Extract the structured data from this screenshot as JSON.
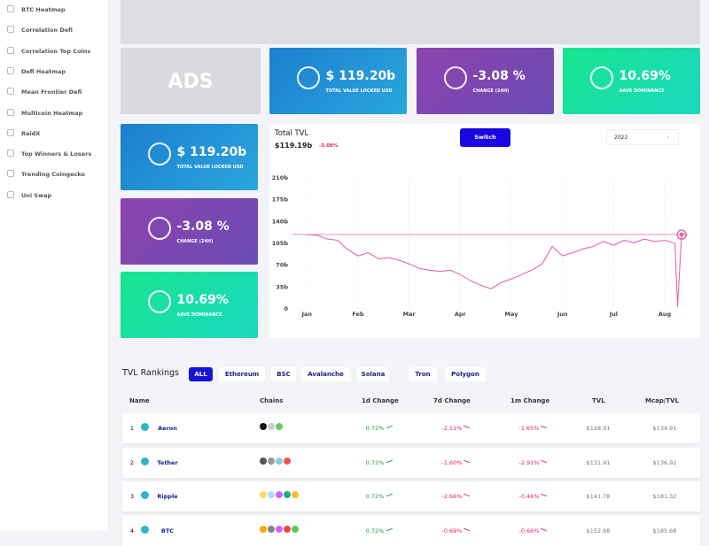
{
  "sidebar": {
    "items": [
      "BTC Heatmap",
      "Correlation Defi",
      "Correlation Top Coins",
      "Defi Heatmap",
      "Mean Frontier Defi",
      "Multicoin Heatmap",
      "RaidX",
      "Top Winners & Losers",
      "Trending Coingecko",
      "Uni Swap"
    ]
  },
  "ads": "ADS",
  "top_cards": [
    {
      "value": "$ 119.20b",
      "label": "TOTAL VALUE LOCKED USD"
    },
    {
      "value": "-3.08 %",
      "label": "CHANGE (24H)"
    },
    {
      "value": "10.69%",
      "label": "AAVE DOMINANCE"
    }
  ],
  "side_cards": [
    {
      "value": "$ 119.20b",
      "label": "TOTAL VALUE LOCKED USD"
    },
    {
      "value": "-3.08 %",
      "label": "CHANGE (24H)"
    },
    {
      "value": "10.69%",
      "label": "AAVE DOMINANCE"
    }
  ],
  "chart_panel": {
    "title": "Total TVL",
    "amount": "$119.19b",
    "change": "-3.08%",
    "button": "Switch",
    "year": "2022"
  },
  "chart_data": {
    "type": "line",
    "x": [
      0,
      0.2,
      0.4,
      0.6,
      0.8,
      1.0,
      1.2,
      1.4,
      1.6,
      1.8,
      2.0,
      2.2,
      2.4,
      2.6,
      2.8,
      3.0,
      3.2,
      3.4,
      3.6,
      3.8,
      4.0,
      4.2,
      4.4,
      4.6,
      4.8,
      5.0,
      5.2,
      5.4,
      5.6,
      5.8,
      6.0,
      6.2,
      6.4,
      6.6,
      6.8,
      7.0,
      7.2,
      7.25,
      7.33
    ],
    "values": [
      119,
      118,
      112,
      110,
      95,
      85,
      90,
      80,
      82,
      78,
      72,
      65,
      62,
      60,
      62,
      55,
      45,
      38,
      32,
      42,
      48,
      55,
      62,
      72,
      100,
      85,
      90,
      96,
      100,
      108,
      102,
      110,
      106,
      112,
      108,
      110,
      105,
      3,
      119
    ],
    "color": "#e06aa8",
    "reference_line": 119.19,
    "xlim": [
      -0.3,
      7.45
    ],
    "xticks": [
      {
        "value": 0,
        "label": "Jan"
      },
      {
        "value": 1,
        "label": "Feb"
      },
      {
        "value": 2,
        "label": "Mar"
      },
      {
        "value": 3,
        "label": "Apr"
      },
      {
        "value": 4,
        "label": "May"
      },
      {
        "value": 5,
        "label": "Jun"
      },
      {
        "value": 6,
        "label": "Jul"
      },
      {
        "value": 7,
        "label": "Aug"
      }
    ],
    "ylim": [
      0,
      210
    ],
    "yticks": [
      0,
      {
        "value": 35,
        "label": "35b"
      },
      {
        "value": 70,
        "label": "70b"
      },
      {
        "value": 105,
        "label": "105b"
      },
      {
        "value": 140,
        "label": "140b"
      },
      {
        "value": 175,
        "label": "175b"
      },
      {
        "value": 210,
        "label": "210b"
      }
    ],
    "grid": true
  },
  "rankings": {
    "title": "TVL Rankings",
    "filters": [
      "ALL",
      "Ethereum",
      "BSC",
      "Avalanche",
      "Solana",
      "Tron",
      "Polygon"
    ],
    "table": {
      "header": [
        "Name",
        "Chains",
        "1d Change",
        "7d Change",
        "1m Change",
        "TVL",
        "Mcap/TVL"
      ],
      "rows": [
        [
          "1",
          "Aeron",
          "0.72%",
          "-2.51%",
          "-1.65%",
          "$128.91",
          "$134.91"
        ],
        [
          "2",
          "Tether",
          "0.72%",
          "-1.60%",
          "-2.91%",
          "$131.91",
          "$136.92"
        ],
        [
          "3",
          "Ripple",
          "0.72%",
          "-2.66%",
          "-0.46%",
          "$141.78",
          "$181.32"
        ],
        [
          "4",
          "BTC",
          "0.72%",
          "-0.69%",
          "-0.66%",
          "$152.68",
          "$185.68"
        ]
      ]
    }
  }
}
